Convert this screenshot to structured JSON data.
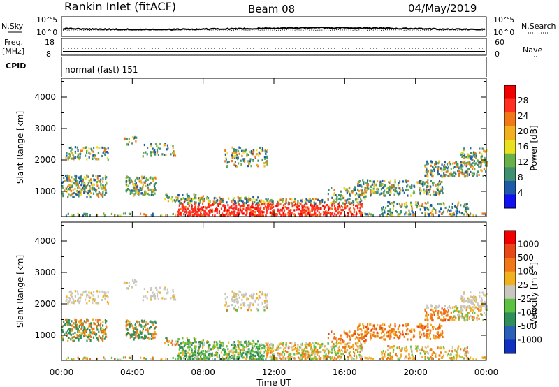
{
  "header": {
    "station": "Rankin Inlet (fitACF)",
    "beam": "Beam 08",
    "date": "04/May/2019"
  },
  "top_panels": {
    "nsky_label": "N.Sky",
    "nsky_ticks": [
      "10^5",
      "10^0"
    ],
    "nsearch_label": "N.Search",
    "nsearch_ticks": [
      "10^5",
      "10^0"
    ],
    "freq_label": "Freq.",
    "freq_unit": "[MHz]",
    "freq_ticks": [
      "18",
      "8"
    ],
    "nave_label": "Nave",
    "nave_ticks": [
      "60",
      "0"
    ],
    "cpid_label": "CPID",
    "cpid_value": "normal (fast) 151"
  },
  "chart_data": [
    {
      "type": "heatmap",
      "name": "power-panel",
      "ylabel": "Slant Range [km]",
      "ylim": [
        200,
        4600
      ],
      "yticks": [
        "1000",
        "2000",
        "3000",
        "4000"
      ],
      "colorbar_label": "Power [dB]",
      "colorbar_ticks": [
        "4",
        "8",
        "12",
        "16",
        "20",
        "24",
        "28"
      ],
      "colorscale": [
        "#1010f0",
        "#1f5aa8",
        "#3e9070",
        "#6ab04a",
        "#e8e020",
        "#f0b020",
        "#f07818",
        "#ff3020",
        "#f00000"
      ]
    },
    {
      "type": "heatmap",
      "name": "velocity-panel",
      "ylabel": "Slant Range [km]",
      "ylim": [
        200,
        4600
      ],
      "yticks": [
        "1000",
        "2000",
        "3000",
        "4000"
      ],
      "xlabel": "Time UT",
      "xticks": [
        "00:00",
        "04:00",
        "08:00",
        "12:00",
        "16:00",
        "20:00",
        "00:00"
      ],
      "colorbar_label": "Velocity [m s",
      "colorbar_ticks": [
        "1000",
        "500",
        "100",
        "25",
        "-25",
        "-100",
        "-500",
        "-1000"
      ],
      "colorscale": [
        "#1030c0",
        "#2a60b8",
        "#2f8f5a",
        "#5cc040",
        "#c8c8c0",
        "#f0b020",
        "#f07818",
        "#e84818",
        "#f00000"
      ]
    }
  ]
}
